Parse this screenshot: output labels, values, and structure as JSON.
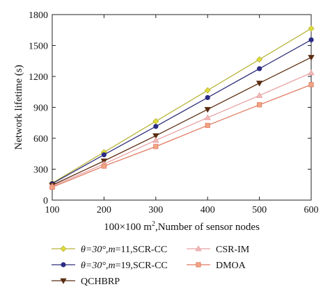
{
  "chart_data": {
    "type": "line",
    "xlabel_main": "100×100 m",
    "xlabel_sup": "2",
    "xlabel_rest": ",Number of sensor nodes",
    "ylabel": "Network lifetime (s)",
    "x": [
      100,
      200,
      300,
      400,
      500,
      600
    ],
    "xlim": [
      100,
      600
    ],
    "ylim": [
      0,
      1800
    ],
    "xticks": [
      "100",
      "200",
      "300",
      "400",
      "500",
      "600"
    ],
    "yticks": [
      "0",
      "300",
      "600",
      "900",
      "1200",
      "1500",
      "1800"
    ],
    "ytick_values": [
      0,
      300,
      600,
      900,
      1200,
      1500,
      1800
    ],
    "grid": false,
    "legend_position": "bottom",
    "series": [
      {
        "label_pre": "θ=30°,",
        "label_m": "m",
        "label_post": "=11,SCR-CC",
        "marker": "diamond",
        "color": "#b8b43a",
        "fill": "#e0dc3a",
        "values": [
          165,
          465,
          765,
          1065,
          1365,
          1665
        ]
      },
      {
        "label_pre": "θ=30°,",
        "label_m": "m",
        "label_post": "=19,SCR-CC",
        "marker": "circle",
        "color": "#2e2e7a",
        "fill": "#2b2b8a",
        "values": [
          160,
          440,
          715,
          995,
          1275,
          1555
        ]
      },
      {
        "label_pre": "",
        "label_m": "",
        "label_post": "QCHBRP",
        "marker": "triangle-down",
        "color": "#5a2c10",
        "fill": "#5a2c10",
        "values": [
          145,
          380,
          625,
          880,
          1135,
          1385
        ]
      },
      {
        "label_pre": "",
        "label_m": "",
        "label_post": "CSR-IM",
        "marker": "triangle-up",
        "color": "#e8a0a0",
        "fill": "#efb8b8",
        "values": [
          135,
          350,
          580,
          800,
          1015,
          1235
        ]
      },
      {
        "label_pre": "",
        "label_m": "",
        "label_post": "DMOA",
        "marker": "square",
        "color": "#e07a60",
        "fill": "#f0a484",
        "values": [
          125,
          330,
          520,
          725,
          925,
          1120
        ]
      }
    ]
  }
}
